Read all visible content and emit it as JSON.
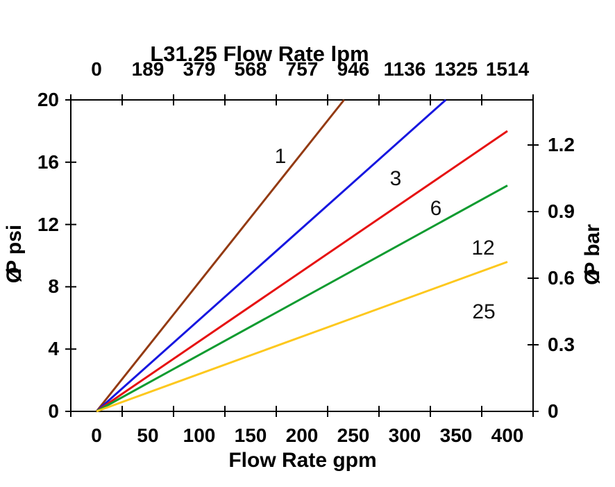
{
  "chart_data": {
    "type": "line",
    "title": "L31.25 Flow Rate lpm",
    "grid": false,
    "legend": "none",
    "axis_top": {
      "unit": "lpm",
      "ticks": [
        "0",
        "189",
        "379",
        "568",
        "757",
        "946",
        "1136",
        "1325",
        "1514"
      ]
    },
    "axis_bottom": {
      "label": "Flow Rate gpm",
      "ticks": [
        "0",
        "50",
        "100",
        "150",
        "200",
        "250",
        "300",
        "350",
        "400"
      ],
      "range_gpm": [
        0,
        400
      ]
    },
    "axis_left": {
      "symbol": "Ø",
      "text": "P psi",
      "ticks": [
        "0",
        "4",
        "8",
        "12",
        "16",
        "20"
      ],
      "range_psi": [
        0,
        20
      ]
    },
    "axis_right": {
      "symbol": "Ø",
      "text": "P bar",
      "ticks": [
        "0",
        "0.3",
        "0.6",
        "0.9",
        "1.2"
      ],
      "range_bar": [
        0,
        1.4
      ]
    },
    "series": [
      {
        "name": "1",
        "color": "#933a12",
        "points_gpm_psi": [
          [
            0,
            0
          ],
          [
            241,
            20
          ]
        ]
      },
      {
        "name": "3",
        "color": "#1717e0",
        "points_gpm_psi": [
          [
            0,
            0
          ],
          [
            340,
            20
          ]
        ]
      },
      {
        "name": "6",
        "color": "#e61212",
        "points_gpm_psi": [
          [
            0,
            0
          ],
          [
            400,
            18.0
          ]
        ]
      },
      {
        "name": "12",
        "color": "#0f9b30",
        "points_gpm_psi": [
          [
            0,
            0
          ],
          [
            400,
            14.5
          ]
        ]
      },
      {
        "name": "25",
        "color": "#fdc81e",
        "points_gpm_psi": [
          [
            0,
            0
          ],
          [
            400,
            9.6
          ]
        ]
      }
    ],
    "frame_color": "#000000"
  }
}
